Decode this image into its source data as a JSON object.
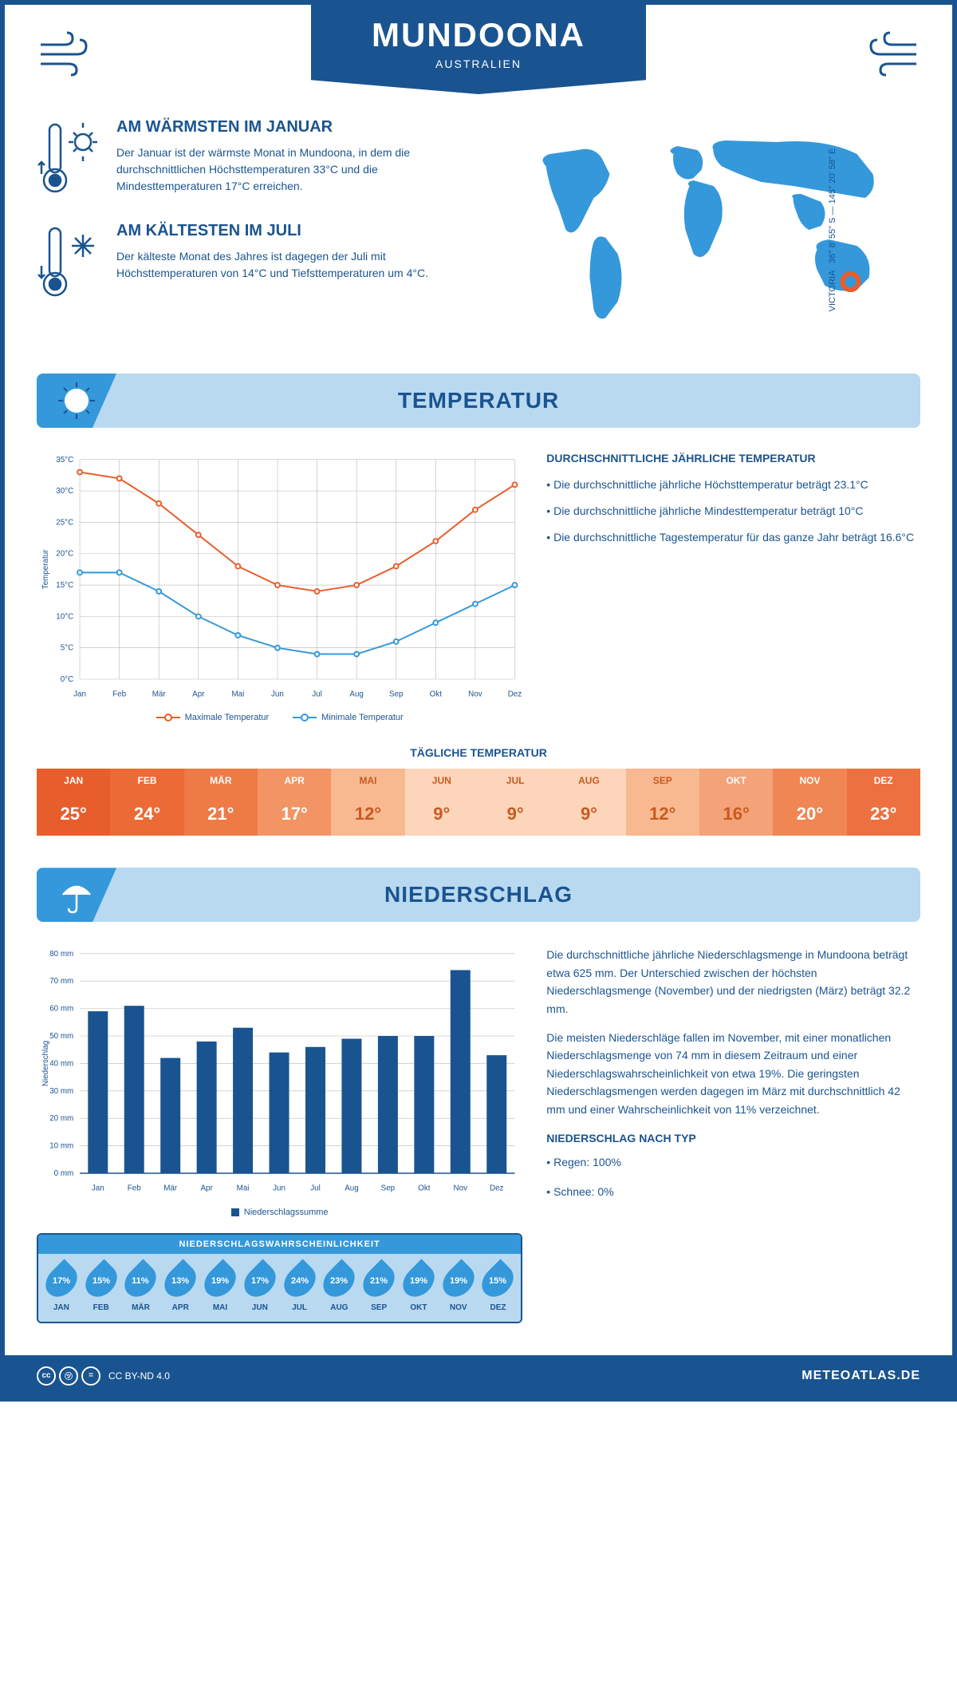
{
  "header": {
    "title": "MUNDOONA",
    "subtitle": "AUSTRALIEN"
  },
  "coords": {
    "lat": "36° 8' 55\" S",
    "lon": "145° 20' 58\" E",
    "region": "VICTORIA"
  },
  "intro": {
    "warm": {
      "title": "AM WÄRMSTEN IM JANUAR",
      "text": "Der Januar ist der wärmste Monat in Mundoona, in dem die durchschnittlichen Höchsttemperaturen 33°C und die Mindesttemperaturen 17°C erreichen."
    },
    "cold": {
      "title": "AM KÄLTESTEN IM JULI",
      "text": "Der kälteste Monat des Jahres ist dagegen der Juli mit Höchsttemperaturen von 14°C und Tiefsttemperaturen um 4°C."
    }
  },
  "months": [
    "Jan",
    "Feb",
    "Mär",
    "Apr",
    "Mai",
    "Jun",
    "Jul",
    "Aug",
    "Sep",
    "Okt",
    "Nov",
    "Dez"
  ],
  "months_upper": [
    "JAN",
    "FEB",
    "MÄR",
    "APR",
    "MAI",
    "JUN",
    "JUL",
    "AUG",
    "SEP",
    "OKT",
    "NOV",
    "DEZ"
  ],
  "temperature_section": {
    "title": "TEMPERATUR",
    "info_title": "DURCHSCHNITTLICHE JÄHRLICHE TEMPERATUR",
    "bullets": [
      "• Die durchschnittliche jährliche Höchsttemperatur beträgt 23.1°C",
      "• Die durchschnittliche jährliche Mindesttemperatur beträgt 10°C",
      "• Die durchschnittliche Tagestemperatur für das ganze Jahr beträgt 16.6°C"
    ],
    "chart": {
      "ylabel": "Temperatur",
      "ylim": [
        0,
        35
      ],
      "ytick_step": 5,
      "ytick_suffix": "°C",
      "max_series": {
        "label": "Maximale Temperatur",
        "color": "#e85d2c",
        "values": [
          33,
          32,
          28,
          23,
          18,
          15,
          14,
          15,
          18,
          22,
          27,
          31
        ]
      },
      "min_series": {
        "label": "Minimale Temperatur",
        "color": "#3498db",
        "values": [
          17,
          17,
          14,
          10,
          7,
          5,
          4,
          4,
          6,
          9,
          12,
          15
        ]
      },
      "grid_color": "#b8b8b8",
      "line_width": 2,
      "marker_radius": 3
    },
    "daily_title": "TÄGLICHE TEMPERATUR",
    "daily_values": [
      "25°",
      "24°",
      "21°",
      "17°",
      "12°",
      "9°",
      "9°",
      "9°",
      "12°",
      "16°",
      "20°",
      "23°"
    ],
    "daily_heat_colors": [
      "#e85d2c",
      "#eb6a36",
      "#ee7a46",
      "#f39464",
      "#f8b890",
      "#fcd5bb",
      "#fcd5bb",
      "#fcd5bb",
      "#f8b890",
      "#f4a278",
      "#f08654",
      "#ec7040"
    ],
    "daily_header_colors": [
      "#e85d2c",
      "#eb6a36",
      "#ee7a46",
      "#f39464",
      "#f8b890",
      "#fcd5bb",
      "#fcd5bb",
      "#fcd5bb",
      "#f8b890",
      "#f4a278",
      "#f08654",
      "#ec7040"
    ]
  },
  "precipitation_section": {
    "title": "NIEDERSCHLAG",
    "text1": "Die durchschnittliche jährliche Niederschlagsmenge in Mundoona beträgt etwa 625 mm. Der Unterschied zwischen der höchsten Niederschlagsmenge (November) und der niedrigsten (März) beträgt 32.2 mm.",
    "text2": "Die meisten Niederschläge fallen im November, mit einer monatlichen Niederschlagsmenge von 74 mm in diesem Zeitraum und einer Niederschlagswahrscheinlichkeit von etwa 19%. Die geringsten Niederschlagsmengen werden dagegen im März mit durchschnittlich 42 mm und einer Wahrscheinlichkeit von 11% verzeichnet.",
    "type_title": "NIEDERSCHLAG NACH TYP",
    "type_bullets": [
      "• Regen: 100%",
      "• Schnee: 0%"
    ],
    "chart": {
      "ylabel": "Niederschlag",
      "ylim": [
        0,
        80
      ],
      "ytick_step": 10,
      "ytick_suffix": " mm",
      "bar_color": "#1a5490",
      "grid_color": "#b8b8b8",
      "values": [
        59,
        61,
        42,
        48,
        53,
        44,
        46,
        49,
        50,
        50,
        74,
        43
      ],
      "legend": "Niederschlagssumme"
    },
    "prob_title": "NIEDERSCHLAGSWAHRSCHEINLICHKEIT",
    "prob_values": [
      "17%",
      "15%",
      "11%",
      "13%",
      "19%",
      "17%",
      "24%",
      "23%",
      "21%",
      "19%",
      "19%",
      "15%"
    ]
  },
  "footer": {
    "license": "CC BY-ND 4.0",
    "site": "METEOATLAS.DE"
  },
  "colors": {
    "primary": "#1a5490",
    "accent": "#3498db",
    "light": "#b8d9f0",
    "orange": "#e85d2c"
  }
}
